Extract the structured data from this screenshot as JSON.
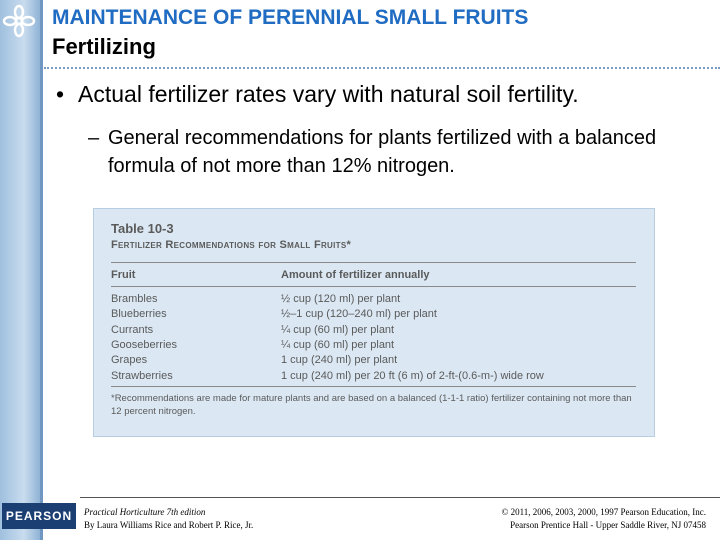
{
  "header": {
    "title": "MAINTENANCE OF PERENNIAL SMALL FRUITS",
    "subtitle": "Fertilizing"
  },
  "bullets": [
    {
      "text": "Actual fertilizer rates vary with natural soil fertility.",
      "marker": "•"
    },
    {
      "text": "General recommendations for plants fertilized with a balanced formula of not more than 12% nitrogen.",
      "marker": "–"
    }
  ],
  "table": {
    "number": "Table 10-3",
    "title": "Fertilizer Recommendations for Small Fruits*",
    "headers": [
      "Fruit",
      "Amount of fertilizer annually"
    ],
    "rows": [
      [
        "Brambles",
        "½ cup (120 ml) per plant"
      ],
      [
        "Blueberries",
        "½–1 cup (120–240 ml) per plant"
      ],
      [
        "Currants",
        "¼ cup (60 ml) per plant"
      ],
      [
        "Gooseberries",
        "¼ cup (60 ml) per plant"
      ],
      [
        "Grapes",
        "1 cup (240 ml) per plant"
      ],
      [
        "Strawberries",
        "1 cup (240 ml) per 20 ft (6 m) of 2-ft-(0.6-m-) wide row"
      ]
    ],
    "note": "*Recommendations are made for mature plants and are based on a balanced (1-1-1 ratio) fertilizer containing not more than 12 percent nitrogen."
  },
  "footer": {
    "logo": "PEARSON",
    "book": "Practical Horticulture 7th edition",
    "authors": "By Laura Williams Rice and Robert P. Rice, Jr.",
    "copyright": "© 2011, 2006, 2003, 2000, 1997 Pearson Education, Inc.",
    "publisher": "Pearson Prentice Hall - Upper Saddle River, NJ 07458"
  }
}
